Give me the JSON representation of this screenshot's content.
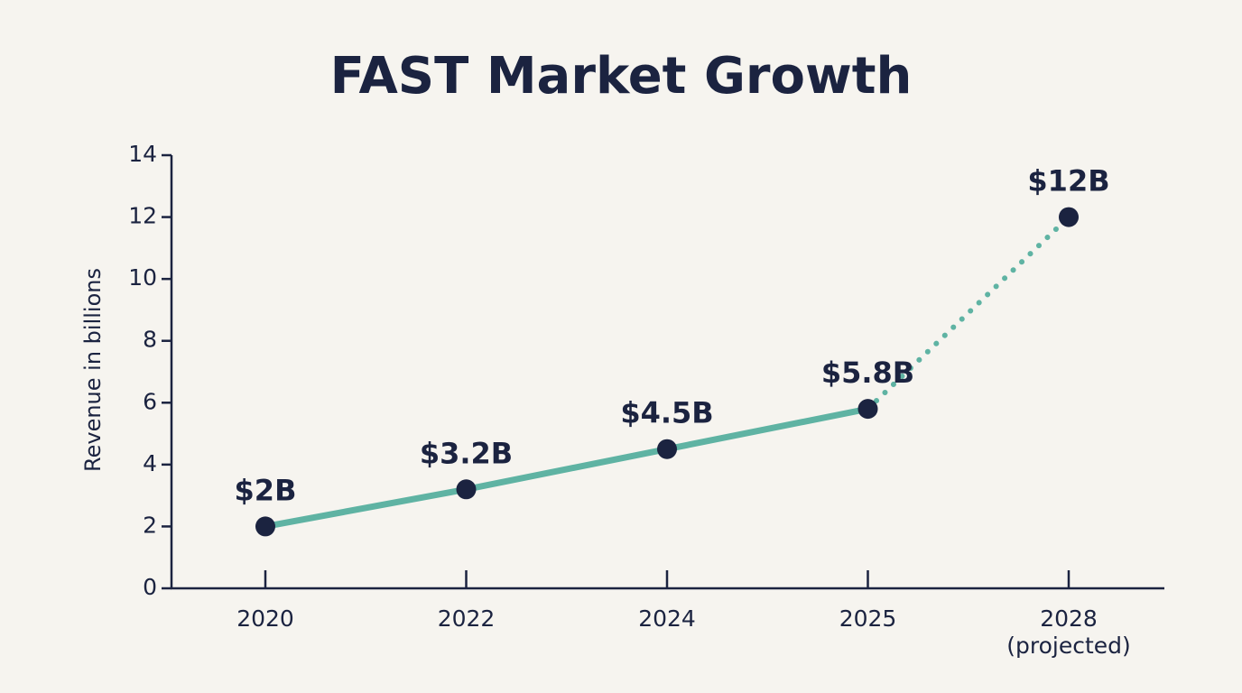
{
  "chart_data": {
    "type": "line",
    "title": "FAST Market Growth",
    "y_label": "Revenue in billions",
    "categories": [
      "2020",
      "2022",
      "2024",
      "2025",
      "2028\n(projected)"
    ],
    "values": [
      2,
      3.2,
      4.5,
      5.8,
      12
    ],
    "value_labels": [
      "$2B",
      "$3.2B",
      "$4.5B",
      "$5.8B",
      "$12B"
    ],
    "dotted": [
      false,
      false,
      false,
      false,
      true
    ],
    "color": "#5fb3a3",
    "marker_color": "#1b2340",
    "ylim": [
      0,
      14
    ],
    "yticks": [
      0,
      2,
      4,
      6,
      8,
      10,
      12,
      14
    ],
    "grid": false
  }
}
